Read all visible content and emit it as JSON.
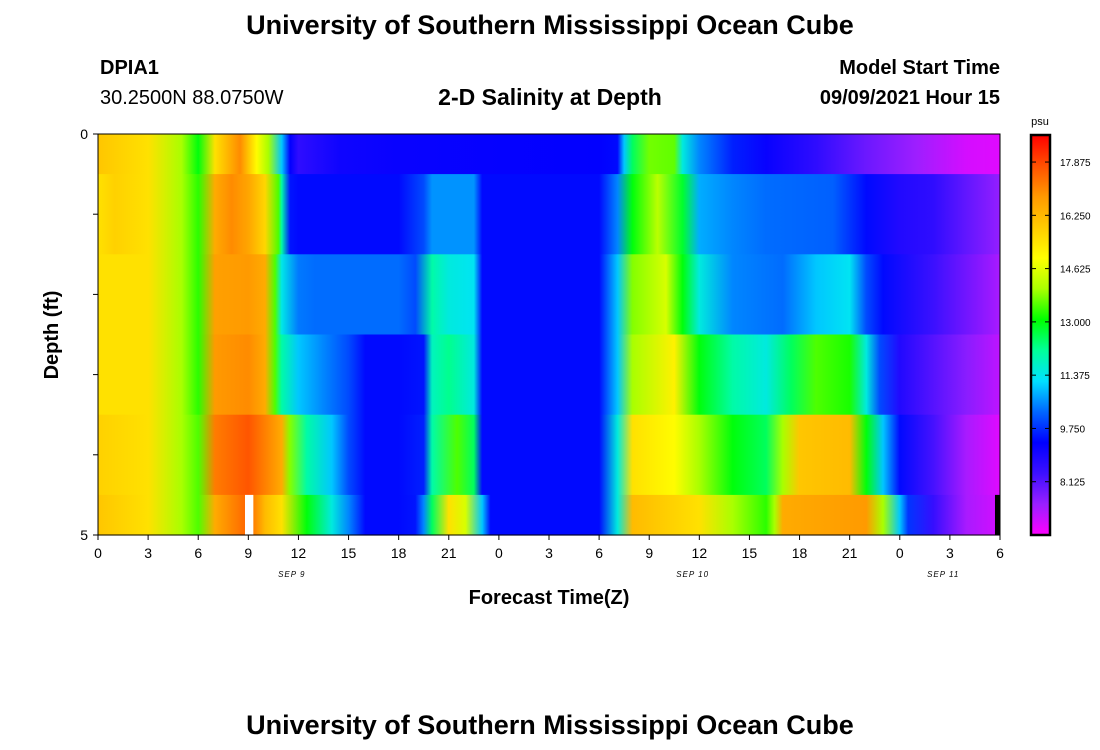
{
  "header": {
    "title_top": "University of Southern Mississippi Ocean Cube",
    "title_bottom": "University of Southern Mississippi Ocean Cube",
    "station_id": "DPIA1",
    "station_coords": "30.2500N  88.0750W",
    "plot_title": "2-D Salinity at Depth",
    "model_label": "Model Start Time",
    "model_time": "09/09/2021 Hour 15"
  },
  "chart_data": {
    "type": "heatmap",
    "title": "2-D Salinity at Depth",
    "xlabel": "Forecast Time(Z)",
    "ylabel": "Depth (ft)",
    "x_tick_labels": [
      "0",
      "3",
      "6",
      "9",
      "12",
      "15",
      "18",
      "21",
      "0",
      "3",
      "6",
      "9",
      "12",
      "15",
      "18",
      "21",
      "0",
      "3",
      "6"
    ],
    "date_labels": [
      {
        "text": "SEP 9",
        "x_hour": 11.6
      },
      {
        "text": "SEP 10",
        "x_hour": 35.6
      },
      {
        "text": "SEP 11",
        "x_hour": 50.6
      }
    ],
    "y_tick_labels": [
      "0",
      "5"
    ],
    "xlim": [
      0,
      54
    ],
    "ylim": [
      0,
      5
    ],
    "depth_levels": 5,
    "colorbar": {
      "unit": "psu",
      "min": 6.5,
      "max": 18.7,
      "labels": [
        "17.875",
        "16.250",
        "14.625",
        "13.000",
        "11.375",
        "9.750",
        "8.125"
      ],
      "colors": [
        "#ff00ff",
        "#9a1fff",
        "#3d10ff",
        "#0000ff",
        "#0066ff",
        "#00e0ff",
        "#00ff99",
        "#00ff00",
        "#aaff00",
        "#ffff00",
        "#ffcc00",
        "#ff9900",
        "#ff5000",
        "#ff0000"
      ]
    },
    "rows": [
      {
        "depth": [
          0,
          0.5
        ],
        "stops": [
          [
            0,
            16
          ],
          [
            3,
            15.5
          ],
          [
            5,
            14
          ],
          [
            6,
            13
          ],
          [
            7,
            15.5
          ],
          [
            8.5,
            17
          ],
          [
            9.5,
            15
          ],
          [
            10.2,
            14
          ],
          [
            11,
            11
          ],
          [
            11.5,
            9.3
          ],
          [
            12,
            8.6
          ],
          [
            13,
            8.8
          ],
          [
            14.5,
            9.1
          ],
          [
            18,
            9.2
          ],
          [
            30,
            9.3
          ],
          [
            31.1,
            9.4
          ],
          [
            31.5,
            11
          ],
          [
            32,
            12.5
          ],
          [
            33,
            13.7
          ],
          [
            34.5,
            13.6
          ],
          [
            35,
            11.5
          ],
          [
            36,
            10.5
          ],
          [
            38,
            9.6
          ],
          [
            40,
            9.2
          ],
          [
            43,
            8.6
          ],
          [
            46,
            7.9
          ],
          [
            49,
            7.4
          ],
          [
            52,
            6.9
          ],
          [
            54,
            6.8
          ]
        ]
      },
      {
        "depth": [
          0.5,
          1.5
        ],
        "stops": [
          [
            0,
            15.5
          ],
          [
            1,
            15.8
          ],
          [
            3,
            15.5
          ],
          [
            5,
            14
          ],
          [
            6,
            13.3
          ],
          [
            7,
            16.5
          ],
          [
            8,
            17
          ],
          [
            9,
            16.6
          ],
          [
            10,
            15.7
          ],
          [
            10.8,
            13.5
          ],
          [
            11,
            12
          ],
          [
            11.5,
            9.5
          ],
          [
            12,
            9.4
          ],
          [
            15,
            9.4
          ],
          [
            18,
            9.4
          ],
          [
            19.5,
            10
          ],
          [
            20,
            10.6
          ],
          [
            22.5,
            10.6
          ],
          [
            23,
            9.4
          ],
          [
            30,
            9.4
          ],
          [
            31.1,
            10.5
          ],
          [
            32,
            13
          ],
          [
            33.5,
            14.2
          ],
          [
            35,
            12.8
          ],
          [
            36,
            10.8
          ],
          [
            38,
            10.5
          ],
          [
            40,
            10.3
          ],
          [
            44,
            10.2
          ],
          [
            46,
            9.4
          ],
          [
            48,
            8.8
          ],
          [
            50,
            8.6
          ],
          [
            52,
            8
          ],
          [
            54,
            7.5
          ]
        ]
      },
      {
        "depth": [
          1.5,
          2.5
        ],
        "stops": [
          [
            0,
            15.5
          ],
          [
            3,
            15.5
          ],
          [
            5,
            14
          ],
          [
            6,
            13.3
          ],
          [
            7,
            16.7
          ],
          [
            9,
            16.8
          ],
          [
            10,
            16.5
          ],
          [
            10.6,
            13.5
          ],
          [
            11,
            11.4
          ],
          [
            12,
            10.4
          ],
          [
            13,
            10.3
          ],
          [
            16,
            10.3
          ],
          [
            18,
            10.3
          ],
          [
            19,
            10
          ],
          [
            20,
            12
          ],
          [
            21,
            11.5
          ],
          [
            22.5,
            11.3
          ],
          [
            23,
            9.4
          ],
          [
            30,
            9.4
          ],
          [
            31.1,
            11
          ],
          [
            32,
            13.8
          ],
          [
            34,
            14.5
          ],
          [
            35,
            13
          ],
          [
            36,
            11.5
          ],
          [
            38,
            10.5
          ],
          [
            41,
            10.3
          ],
          [
            43,
            11
          ],
          [
            45,
            11.3
          ],
          [
            46,
            10
          ],
          [
            47,
            9.4
          ],
          [
            50,
            8.4
          ],
          [
            54,
            7.3
          ]
        ]
      },
      {
        "depth": [
          2.5,
          3.5
        ],
        "stops": [
          [
            0,
            15.5
          ],
          [
            3,
            15.5
          ],
          [
            5,
            14
          ],
          [
            6,
            13.3
          ],
          [
            7,
            16.8
          ],
          [
            9,
            17
          ],
          [
            10,
            16.5
          ],
          [
            10.6,
            13.5
          ],
          [
            11,
            12
          ],
          [
            12,
            11
          ],
          [
            13.5,
            10.5
          ],
          [
            15,
            10
          ],
          [
            16,
            9.4
          ],
          [
            18,
            9.4
          ],
          [
            19.5,
            9.5
          ],
          [
            20,
            11.8
          ],
          [
            21,
            12.2
          ],
          [
            22.5,
            11.5
          ],
          [
            23,
            9.4
          ],
          [
            30,
            9.4
          ],
          [
            31.1,
            11
          ],
          [
            32,
            14
          ],
          [
            34.5,
            15.2
          ],
          [
            36,
            13
          ],
          [
            38,
            12
          ],
          [
            40,
            11.5
          ],
          [
            41.5,
            12.5
          ],
          [
            43,
            13.5
          ],
          [
            45,
            13.2
          ],
          [
            46,
            11.5
          ],
          [
            46.8,
            10
          ],
          [
            48,
            8.8
          ],
          [
            52,
            7.6
          ],
          [
            54,
            7.1
          ]
        ]
      },
      {
        "depth": [
          3.5,
          4.5
        ],
        "stops": [
          [
            0,
            15.8
          ],
          [
            3,
            15.5
          ],
          [
            5,
            14
          ],
          [
            6,
            13.5
          ],
          [
            7,
            17.2
          ],
          [
            9,
            17.7
          ],
          [
            11,
            16.5
          ],
          [
            11.5,
            13.8
          ],
          [
            12.5,
            12
          ],
          [
            14,
            11
          ],
          [
            15,
            10
          ],
          [
            16,
            9.4
          ],
          [
            18,
            9.4
          ],
          [
            19.5,
            9.6
          ],
          [
            20,
            12
          ],
          [
            21.5,
            13.5
          ],
          [
            22.5,
            12.5
          ],
          [
            23,
            9.4
          ],
          [
            30,
            9.4
          ],
          [
            31.1,
            11.5
          ],
          [
            32,
            15.5
          ],
          [
            34.5,
            15
          ],
          [
            36,
            14
          ],
          [
            38,
            13
          ],
          [
            40,
            12.5
          ],
          [
            41,
            14
          ],
          [
            42,
            16
          ],
          [
            45,
            16.2
          ],
          [
            46,
            13
          ],
          [
            47,
            11
          ],
          [
            48,
            9.4
          ],
          [
            50,
            8.3
          ],
          [
            52,
            7.3
          ],
          [
            54,
            6.8
          ]
        ]
      },
      {
        "depth": [
          4.5,
          5
        ],
        "stops": [
          [
            0,
            16
          ],
          [
            3,
            15.5
          ],
          [
            5,
            14
          ],
          [
            6,
            13.5
          ],
          [
            7,
            16.5
          ],
          [
            8.5,
            17.3
          ],
          [
            9,
            17.5
          ],
          [
            10,
            16.2
          ],
          [
            11,
            15.5
          ],
          [
            12.5,
            13
          ],
          [
            14,
            11.5
          ],
          [
            15,
            10.5
          ],
          [
            16,
            9.4
          ],
          [
            18,
            9.4
          ],
          [
            19,
            9.5
          ],
          [
            19.5,
            10.5
          ],
          [
            20,
            12.5
          ],
          [
            21,
            15.5
          ],
          [
            22,
            14.5
          ],
          [
            23,
            11
          ],
          [
            23.5,
            9.4
          ],
          [
            30,
            9.4
          ],
          [
            31.1,
            11.5
          ],
          [
            32,
            16.2
          ],
          [
            36,
            15.5
          ],
          [
            38,
            14
          ],
          [
            40,
            13.3
          ],
          [
            40.5,
            14
          ],
          [
            41,
            16.5
          ],
          [
            46,
            16.8
          ],
          [
            47,
            14
          ],
          [
            48,
            11
          ],
          [
            48.5,
            9.8
          ],
          [
            50,
            8.5
          ],
          [
            52,
            7.3
          ],
          [
            54,
            6.9
          ]
        ]
      }
    ],
    "overlays": [
      {
        "x_hour": [
          8.8,
          9.3
        ],
        "depth": [
          4.5,
          5
        ],
        "color": "#ffffff"
      },
      {
        "x_hour": [
          53.7,
          54
        ],
        "depth": [
          4.5,
          5
        ],
        "color": "#000000"
      }
    ]
  }
}
